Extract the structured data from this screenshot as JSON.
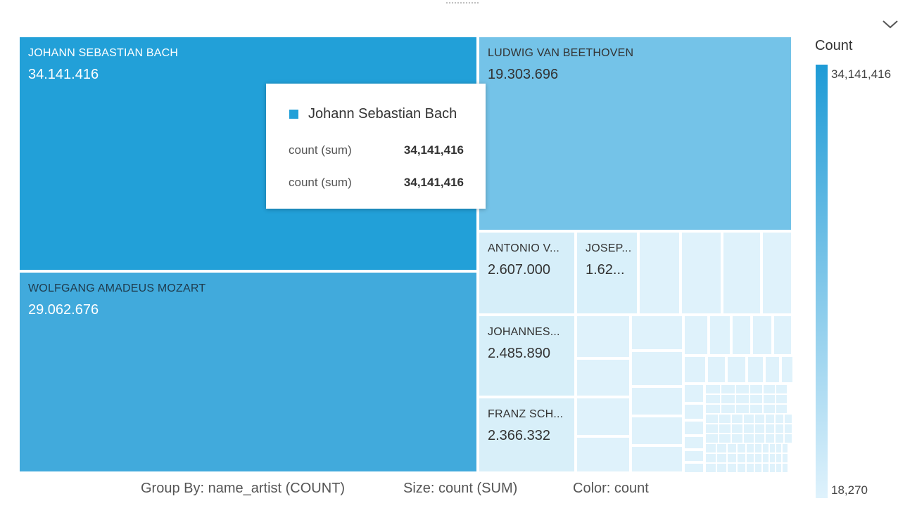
{
  "chart_data": {
    "type": "treemap",
    "tiles": [
      {
        "name": "JOHANN SEBASTIAN BACH",
        "value_label": "34.141.416",
        "value": 34141416
      },
      {
        "name": "WOLFGANG AMADEUS MOZART",
        "value_label": "29.062.676",
        "value": 29062676
      },
      {
        "name": "LUDWIG VAN BEETHOVEN",
        "value_label": "19.303.696",
        "value": 19303696
      },
      {
        "name": "ANTONIO V...",
        "value_label": "2.607.000",
        "value": 2607000
      },
      {
        "name": "JOSEP...",
        "value_label": "1.62...",
        "value": null
      },
      {
        "name": "JOHANNES...",
        "value_label": "2.485.890",
        "value": 2485890
      },
      {
        "name": "FRANZ SCH...",
        "value_label": "2.366.332",
        "value": 2366332
      }
    ],
    "color_legend": {
      "title": "Count",
      "max_label": "34,141,416",
      "min_label": "18,270",
      "max_color": "#1e9bd6",
      "min_color": "#dff2fc"
    }
  },
  "tooltip": {
    "title": "Johann Sebastian Bach",
    "swatch_color": "#22a0d8",
    "rows": [
      {
        "label": "count (sum)",
        "value": "34,141,416"
      },
      {
        "label": "count (sum)",
        "value": "34,141,416"
      }
    ]
  },
  "footer": {
    "group_by": "Group By: name_artist (COUNT)",
    "size": "Size: count (SUM)",
    "color": "Color: count"
  },
  "icons": {
    "menu": "chevron-down-icon",
    "drag": "drag-handle-icon"
  }
}
